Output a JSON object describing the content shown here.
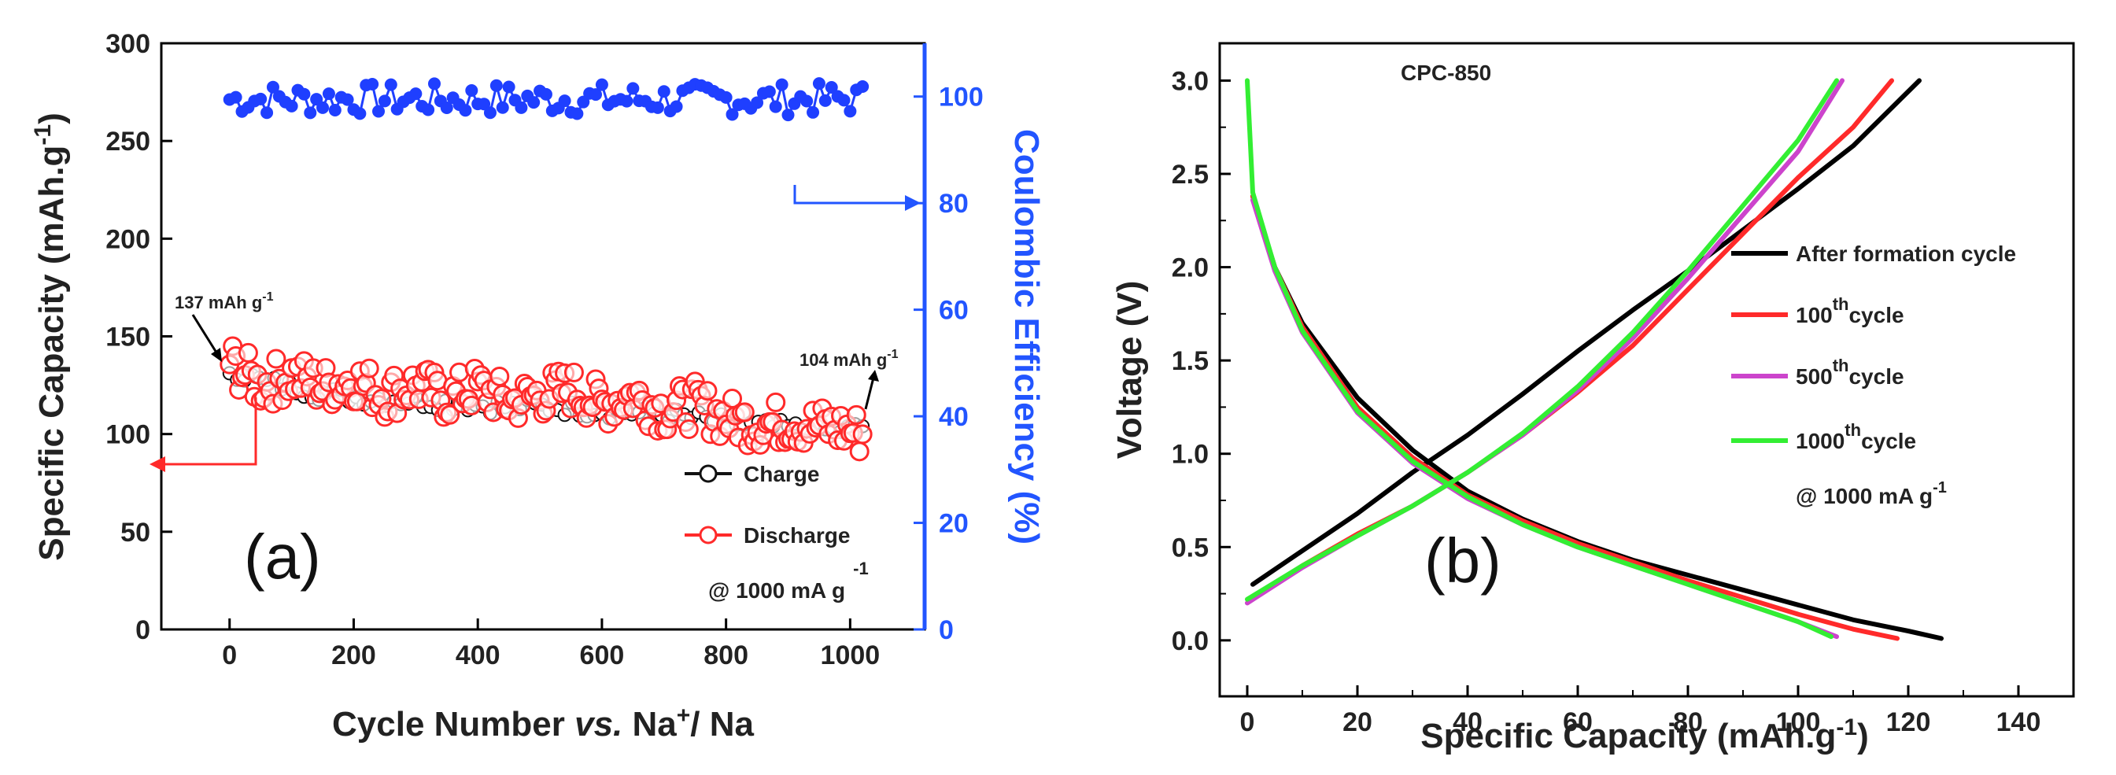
{
  "chart_data": [
    {
      "type": "scatter",
      "panel_label": "(a)",
      "xlabel_parts": [
        "Cycle Number ",
        "vs.",
        " Na",
        "+",
        "/ Na"
      ],
      "ylabel_parts": [
        "Specific Capacity (mAh.g",
        "-1",
        ")"
      ],
      "y2label": "Coulombic Efficiency (%)",
      "xlim": [
        -110,
        1120
      ],
      "ylim": [
        0,
        300
      ],
      "y2lim": [
        0,
        110
      ],
      "x_ticks": [
        "0",
        "200",
        "400",
        "600",
        "800",
        "1000"
      ],
      "y_ticks": [
        "0",
        "50",
        "100",
        "150",
        "200",
        "250",
        "300"
      ],
      "y2_ticks": [
        "0",
        "20",
        "40",
        "60",
        "80",
        "100"
      ],
      "series": [
        {
          "name": "Charge",
          "color": "#111111",
          "axis": "left",
          "x": [
            0,
            50,
            100,
            150,
            200,
            250,
            300,
            350,
            400,
            450,
            500,
            550,
            600,
            650,
            700,
            750,
            800,
            850,
            900,
            950,
            1000,
            1020
          ],
          "y": [
            133,
            127,
            124,
            121,
            119,
            118,
            117,
            116,
            115,
            114,
            114,
            113,
            112,
            111,
            110,
            108,
            106,
            104,
            103,
            102,
            102,
            104
          ]
        },
        {
          "name": "Discharge",
          "color": "#ff2a2a",
          "axis": "left",
          "x": [
            0,
            50,
            100,
            150,
            200,
            250,
            300,
            350,
            400,
            450,
            500,
            550,
            600,
            650,
            700,
            750,
            800,
            850,
            900,
            950,
            1000,
            1020
          ],
          "y": [
            137,
            125,
            130,
            124,
            128,
            120,
            125,
            118,
            124,
            116,
            120,
            123,
            115,
            120,
            112,
            115,
            108,
            105,
            106,
            104,
            102,
            100
          ],
          "spread": 12
        },
        {
          "name": "Coulombic Efficiency",
          "color": "#1f3fff",
          "axis": "right",
          "x": [
            0,
            100,
            200,
            300,
            400,
            500,
            600,
            700,
            800,
            900,
            1000,
            1020
          ],
          "y": [
            99.5,
            99.5,
            99.5,
            99.5,
            99.5,
            99.5,
            99.5,
            99.5,
            99.5,
            99.5,
            99.5,
            99.5
          ],
          "spread": 3
        }
      ],
      "legend": {
        "charge": "Charge",
        "discharge": "Discharge",
        "current_parts": [
          "@ 1000 mA g",
          "-1"
        ]
      },
      "annotations": {
        "first": [
          "137 mAh g",
          "-1"
        ],
        "last": [
          "104 mAh g",
          "-1"
        ]
      }
    },
    {
      "type": "line",
      "panel_label": "(b)",
      "title": "CPC-850",
      "xlabel_parts": [
        "Specific Capacity (mAh.g",
        "-1",
        ")"
      ],
      "ylabel": "Voltage (V)",
      "xlim": [
        -5,
        150
      ],
      "ylim": [
        -0.3,
        3.2
      ],
      "x_ticks": [
        "0",
        "20",
        "40",
        "60",
        "80",
        "100",
        "120",
        "140"
      ],
      "y_ticks": [
        "0.0",
        "0.5",
        "1.0",
        "1.5",
        "2.0",
        "2.5",
        "3.0"
      ],
      "series": [
        {
          "name": "After formation cycle",
          "legend_parts": [
            "After formation cycle",
            "",
            ""
          ],
          "color": "#000000",
          "charge": [
            [
              1,
              0.3
            ],
            [
              10,
              0.48
            ],
            [
              20,
              0.68
            ],
            [
              30,
              0.9
            ],
            [
              40,
              1.1
            ],
            [
              50,
              1.32
            ],
            [
              60,
              1.55
            ],
            [
              70,
              1.77
            ],
            [
              80,
              1.98
            ],
            [
              90,
              2.2
            ],
            [
              100,
              2.42
            ],
            [
              110,
              2.65
            ],
            [
              122,
              3.0
            ]
          ],
          "discharge": [
            [
              1,
              2.38
            ],
            [
              5,
              2.0
            ],
            [
              10,
              1.7
            ],
            [
              20,
              1.3
            ],
            [
              30,
              1.02
            ],
            [
              40,
              0.8
            ],
            [
              50,
              0.65
            ],
            [
              60,
              0.53
            ],
            [
              70,
              0.43
            ],
            [
              80,
              0.35
            ],
            [
              90,
              0.27
            ],
            [
              100,
              0.19
            ],
            [
              110,
              0.11
            ],
            [
              120,
              0.05
            ],
            [
              126,
              0.01
            ]
          ]
        },
        {
          "name": "100th cycle",
          "legend_parts": [
            "100",
            "th",
            "cycle"
          ],
          "color": "#ff2a2a",
          "charge": [
            [
              1,
              0.23
            ],
            [
              10,
              0.4
            ],
            [
              20,
              0.57
            ],
            [
              30,
              0.72
            ],
            [
              40,
              0.9
            ],
            [
              50,
              1.1
            ],
            [
              60,
              1.33
            ],
            [
              70,
              1.58
            ],
            [
              80,
              1.88
            ],
            [
              90,
              2.18
            ],
            [
              100,
              2.48
            ],
            [
              110,
              2.75
            ],
            [
              117,
              3.0
            ]
          ],
          "discharge": [
            [
              1,
              2.38
            ],
            [
              5,
              2.0
            ],
            [
              10,
              1.68
            ],
            [
              20,
              1.25
            ],
            [
              30,
              0.98
            ],
            [
              40,
              0.78
            ],
            [
              50,
              0.64
            ],
            [
              60,
              0.52
            ],
            [
              70,
              0.42
            ],
            [
              80,
              0.32
            ],
            [
              90,
              0.23
            ],
            [
              100,
              0.14
            ],
            [
              110,
              0.06
            ],
            [
              118,
              0.01
            ]
          ]
        },
        {
          "name": "500th cycle",
          "legend_parts": [
            "500",
            "th",
            "cycle"
          ],
          "color": "#cc44cc",
          "charge": [
            [
              0,
              0.2
            ],
            [
              10,
              0.39
            ],
            [
              20,
              0.56
            ],
            [
              30,
              0.72
            ],
            [
              40,
              0.9
            ],
            [
              50,
              1.1
            ],
            [
              60,
              1.34
            ],
            [
              70,
              1.62
            ],
            [
              80,
              1.94
            ],
            [
              90,
              2.28
            ],
            [
              100,
              2.62
            ],
            [
              108,
              3.0
            ]
          ],
          "discharge": [
            [
              1,
              2.36
            ],
            [
              5,
              1.98
            ],
            [
              10,
              1.65
            ],
            [
              20,
              1.22
            ],
            [
              30,
              0.95
            ],
            [
              40,
              0.76
            ],
            [
              50,
              0.62
            ],
            [
              60,
              0.5
            ],
            [
              70,
              0.4
            ],
            [
              80,
              0.3
            ],
            [
              90,
              0.2
            ],
            [
              100,
              0.1
            ],
            [
              107,
              0.02
            ]
          ]
        },
        {
          "name": "1000th cycle",
          "legend_parts": [
            "1000",
            "th",
            "cycle"
          ],
          "color": "#33ee33",
          "charge": [
            [
              0,
              0.22
            ],
            [
              10,
              0.4
            ],
            [
              20,
              0.56
            ],
            [
              30,
              0.72
            ],
            [
              40,
              0.9
            ],
            [
              50,
              1.11
            ],
            [
              60,
              1.36
            ],
            [
              70,
              1.65
            ],
            [
              80,
              1.98
            ],
            [
              90,
              2.33
            ],
            [
              100,
              2.68
            ],
            [
              107,
              3.0
            ]
          ],
          "discharge": [
            [
              0,
              3.0
            ],
            [
              1,
              2.4
            ],
            [
              5,
              2.0
            ],
            [
              10,
              1.66
            ],
            [
              20,
              1.23
            ],
            [
              30,
              0.96
            ],
            [
              40,
              0.77
            ],
            [
              50,
              0.62
            ],
            [
              60,
              0.5
            ],
            [
              70,
              0.4
            ],
            [
              80,
              0.3
            ],
            [
              90,
              0.2
            ],
            [
              100,
              0.1
            ],
            [
              106,
              0.02
            ]
          ]
        }
      ],
      "current_parts": [
        "@ 1000 mA g",
        "-1"
      ]
    }
  ]
}
